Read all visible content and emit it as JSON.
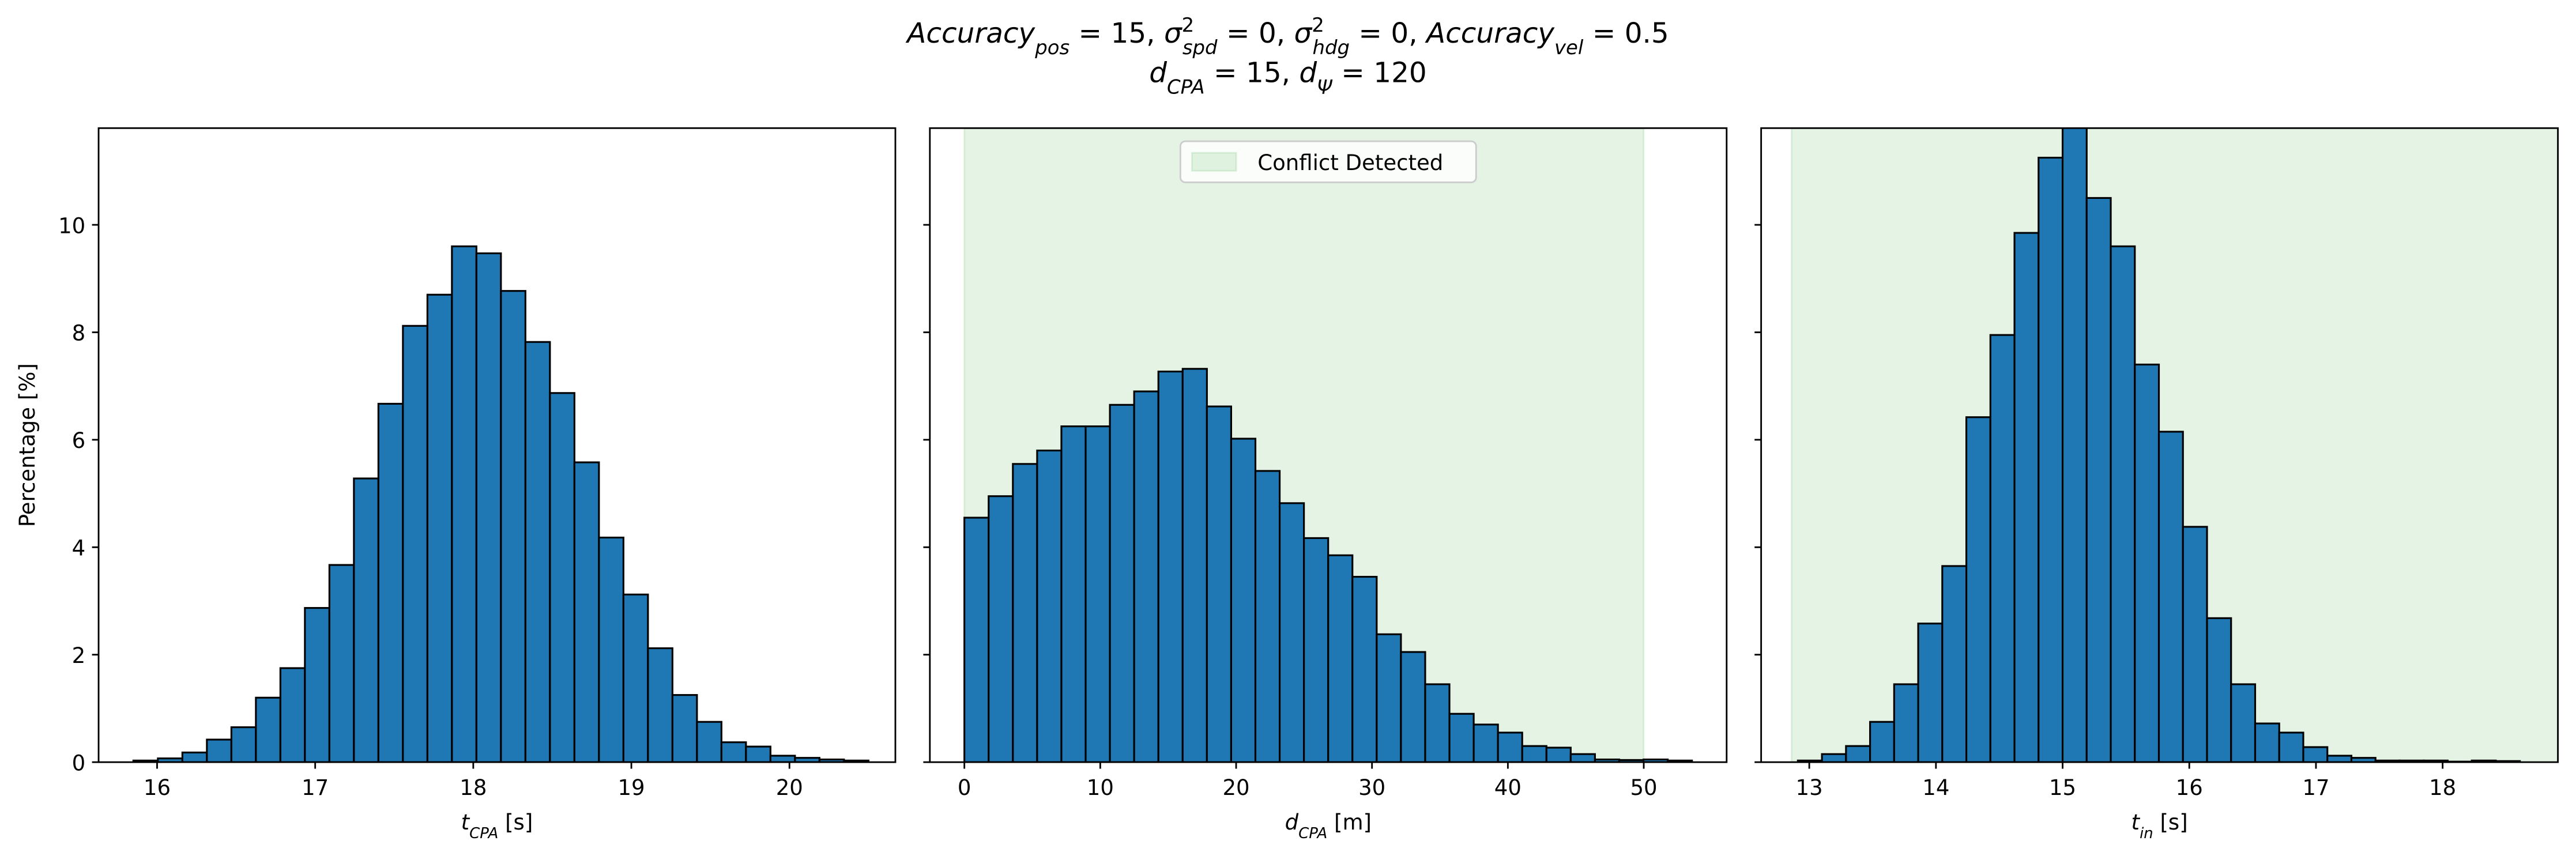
{
  "title": [
    [
      {
        "text": "Accuracy",
        "sub": "pos"
      },
      {
        "text": " = 15, "
      },
      {
        "text": "σ",
        "sup": "2",
        "sub": "spd"
      },
      {
        "text": " = 0, "
      },
      {
        "text": "σ",
        "sup": "2",
        "sub": "hdg"
      },
      {
        "text": " = 0, "
      },
      {
        "text": "Accuracy",
        "sub": "vel"
      },
      {
        "text": " = 0.5"
      }
    ],
    [
      {
        "text": "d",
        "sub": "CPA"
      },
      {
        "text": " = 15, "
      },
      {
        "text": "d",
        "sub": "Ψ"
      },
      {
        "text": " = 120"
      }
    ]
  ],
  "chart_data": [
    {
      "type": "histogram",
      "color": "#1f77b4",
      "edgecolor": "#000000",
      "bins": [
        15.85,
        16.005,
        16.16,
        16.315,
        16.47,
        16.625,
        16.78,
        16.935,
        17.09,
        17.245,
        17.4,
        17.555,
        17.71,
        17.865,
        18.02,
        18.175,
        18.33,
        18.485,
        18.64,
        18.795,
        18.95,
        19.105,
        19.26,
        19.415,
        19.57,
        19.725,
        19.88,
        20.035,
        20.19,
        20.345,
        20.5
      ],
      "values": [
        0.03,
        0.07,
        0.18,
        0.42,
        0.65,
        1.2,
        1.75,
        2.87,
        3.67,
        5.28,
        6.67,
        8.12,
        8.7,
        9.6,
        9.47,
        8.77,
        7.82,
        6.87,
        5.58,
        4.18,
        3.12,
        2.12,
        1.25,
        0.75,
        0.37,
        0.29,
        0.12,
        0.08,
        0.05,
        0.03
      ],
      "xlim": [
        15.63,
        20.67
      ],
      "xticks": [
        16,
        17,
        18,
        19,
        20
      ],
      "ylim": [
        0,
        11.8
      ],
      "yticks": [
        0,
        2,
        4,
        6,
        8,
        10
      ],
      "show_ytick_labels": true,
      "xlabel": [
        {
          "text": "t",
          "sub": "CPA"
        },
        {
          "text": " [s]"
        }
      ],
      "ylabel": "Percentage [%]"
    },
    {
      "type": "histogram",
      "color": "#1f77b4",
      "edgecolor": "#000000",
      "bins": [
        0,
        1.785,
        3.57,
        5.355,
        7.14,
        8.925,
        10.71,
        12.495,
        14.28,
        16.065,
        17.85,
        19.635,
        21.42,
        23.205,
        24.99,
        26.775,
        28.56,
        30.345,
        32.13,
        33.915,
        35.7,
        37.485,
        39.27,
        41.055,
        42.84,
        44.625,
        46.41,
        48.195,
        49.98,
        51.765,
        53.55
      ],
      "values": [
        4.55,
        4.95,
        5.55,
        5.8,
        6.25,
        6.25,
        6.65,
        6.9,
        7.27,
        7.32,
        6.62,
        6.02,
        5.42,
        4.82,
        4.17,
        3.85,
        3.45,
        2.38,
        2.05,
        1.45,
        0.9,
        0.7,
        0.55,
        0.3,
        0.27,
        0.15,
        0.05,
        0.04,
        0.05,
        0.03
      ],
      "xlim": [
        -2.54,
        56.1
      ],
      "xticks": [
        0,
        10,
        20,
        30,
        40,
        50
      ],
      "ylim": [
        0,
        11.8
      ],
      "yticks": [
        0,
        2,
        4,
        6,
        8,
        10
      ],
      "show_ytick_labels": false,
      "xlabel": [
        {
          "text": "d",
          "sub": "CPA"
        },
        {
          "text": " [m]"
        }
      ],
      "span": {
        "range": [
          0,
          50
        ],
        "color": "#2ca02c",
        "label": "Conflict Detected"
      },
      "legend": "upper center"
    },
    {
      "type": "histogram",
      "color": "#1f77b4",
      "edgecolor": "#000000",
      "bins": [
        12.91,
        13.1,
        13.29,
        13.48,
        13.67,
        13.86,
        14.05,
        14.24,
        14.43,
        14.62,
        14.81,
        15,
        15.19,
        15.38,
        15.57,
        15.76,
        15.95,
        16.14,
        16.33,
        16.52,
        16.71,
        16.9,
        17.09,
        17.28,
        17.47,
        17.66,
        17.85,
        18.04,
        18.23,
        18.42,
        18.61
      ],
      "values": [
        0.03,
        0.15,
        0.3,
        0.75,
        1.45,
        2.58,
        3.65,
        6.42,
        7.95,
        9.85,
        11.25,
        12.0,
        10.5,
        9.6,
        7.4,
        6.15,
        4.38,
        2.68,
        1.45,
        0.72,
        0.55,
        0.28,
        0.12,
        0.08,
        0.03,
        0.03,
        0.03,
        0.01,
        0.03,
        0.02
      ],
      "xlim": [
        12.62,
        18.91
      ],
      "xticks": [
        13,
        14,
        15,
        16,
        17,
        18
      ],
      "ylim": [
        0,
        11.8
      ],
      "yticks": [
        0,
        2,
        4,
        6,
        8,
        10
      ],
      "show_ytick_labels": false,
      "xlabel": [
        {
          "text": "t",
          "sub": "in"
        },
        {
          "text": " [s]"
        }
      ],
      "span": {
        "range": [
          12.86,
          18.91
        ],
        "color": "#2ca02c"
      }
    }
  ]
}
